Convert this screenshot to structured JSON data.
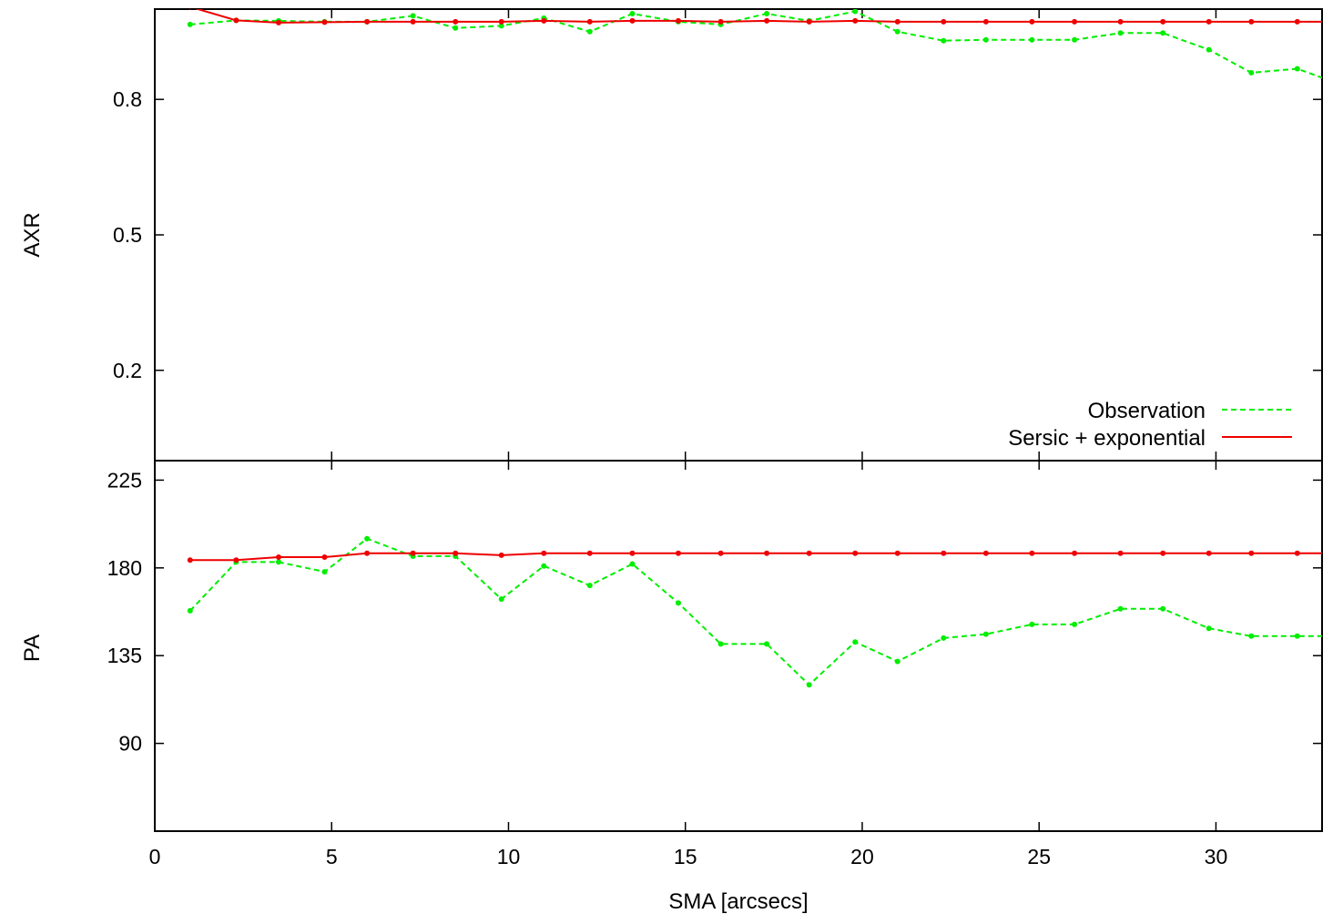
{
  "chart_data": [
    {
      "type": "line",
      "panel": "top",
      "ylabel": "AXR",
      "xlabel": "",
      "xlim": [
        0,
        33
      ],
      "ylim": [
        0,
        1
      ],
      "x_ticks": [
        0,
        5,
        10,
        15,
        20,
        25,
        30
      ],
      "y_ticks": [
        0.2,
        0.5,
        0.8
      ],
      "y_tick_labels": [
        "0.2",
        "0.5",
        "0.8"
      ],
      "grid": false,
      "legend_position": "bottom-right",
      "colors": {
        "observation": "#00ee00",
        "model": "#ee0000"
      },
      "series": [
        {
          "name": "Observation",
          "style": "dashed",
          "x": [
            1.0,
            2.3,
            3.5,
            4.8,
            6.0,
            7.3,
            8.5,
            9.8,
            11.0,
            12.3,
            13.5,
            14.8,
            16.0,
            17.3,
            18.5,
            19.8,
            21.0,
            22.3,
            23.5,
            24.8,
            26.0,
            27.3,
            28.5,
            29.8,
            31.0,
            32.3,
            33.0
          ],
          "y": [
            0.966,
            0.975,
            0.974,
            0.972,
            0.972,
            0.985,
            0.958,
            0.963,
            0.98,
            0.95,
            0.99,
            0.972,
            0.966,
            0.99,
            0.974,
            0.995,
            0.95,
            0.93,
            0.932,
            0.932,
            0.932,
            0.947,
            0.947,
            0.91,
            0.859,
            0.868,
            0.848
          ]
        },
        {
          "name": "Sersic + exponential",
          "style": "solid",
          "x": [
            1.0,
            2.3,
            3.5,
            4.8,
            6.0,
            7.3,
            8.5,
            9.8,
            11.0,
            12.3,
            13.5,
            14.8,
            16.0,
            17.3,
            18.5,
            19.8,
            21.0,
            22.3,
            23.5,
            24.8,
            26.0,
            27.3,
            28.5,
            29.8,
            31.0,
            32.3,
            33.0
          ],
          "y": [
            1.005,
            0.975,
            0.97,
            0.971,
            0.972,
            0.972,
            0.972,
            0.972,
            0.974,
            0.972,
            0.974,
            0.974,
            0.972,
            0.974,
            0.972,
            0.974,
            0.972,
            0.972,
            0.972,
            0.972,
            0.972,
            0.972,
            0.972,
            0.972,
            0.972,
            0.972,
            0.972
          ]
        }
      ]
    },
    {
      "type": "line",
      "panel": "bottom",
      "ylabel": "PA",
      "xlabel": "SMA [arcsecs]",
      "xlim": [
        0,
        33
      ],
      "ylim": [
        45,
        235
      ],
      "x_ticks": [
        0,
        5,
        10,
        15,
        20,
        25,
        30
      ],
      "x_tick_labels": [
        "0",
        "5",
        "10",
        "15",
        "20",
        "25",
        "30"
      ],
      "y_ticks": [
        90,
        135,
        180,
        225
      ],
      "y_tick_labels": [
        "90",
        "135",
        "180",
        "225"
      ],
      "grid": false,
      "colors": {
        "observation": "#00ee00",
        "model": "#ee0000"
      },
      "series": [
        {
          "name": "Observation",
          "style": "dashed",
          "x": [
            1.0,
            2.3,
            3.5,
            4.8,
            6.0,
            7.3,
            8.5,
            9.8,
            11.0,
            12.3,
            13.5,
            14.8,
            16.0,
            17.3,
            18.5,
            19.8,
            21.0,
            22.3,
            23.5,
            24.8,
            26.0,
            27.3,
            28.5,
            29.8,
            31.0,
            32.3,
            33.0
          ],
          "y": [
            158,
            183,
            183,
            178,
            195,
            186,
            186,
            164,
            181,
            171,
            182,
            162,
            141,
            141,
            120,
            142,
            132,
            144,
            146,
            151,
            151,
            159,
            159,
            149,
            145,
            145,
            145
          ]
        },
        {
          "name": "Sersic + exponential",
          "style": "solid",
          "x": [
            1.0,
            2.3,
            3.5,
            4.8,
            6.0,
            7.3,
            8.5,
            9.8,
            11.0,
            12.3,
            13.5,
            14.8,
            16.0,
            17.3,
            18.5,
            19.8,
            21.0,
            22.3,
            23.5,
            24.8,
            26.0,
            27.3,
            28.5,
            29.8,
            31.0,
            32.3,
            33.0
          ],
          "y": [
            184,
            184,
            185.5,
            185.5,
            187.5,
            187.5,
            187.5,
            186.5,
            187.5,
            187.5,
            187.5,
            187.5,
            187.5,
            187.5,
            187.5,
            187.5,
            187.5,
            187.5,
            187.5,
            187.5,
            187.5,
            187.5,
            187.5,
            187.5,
            187.5,
            187.5,
            187.5
          ]
        }
      ]
    }
  ]
}
